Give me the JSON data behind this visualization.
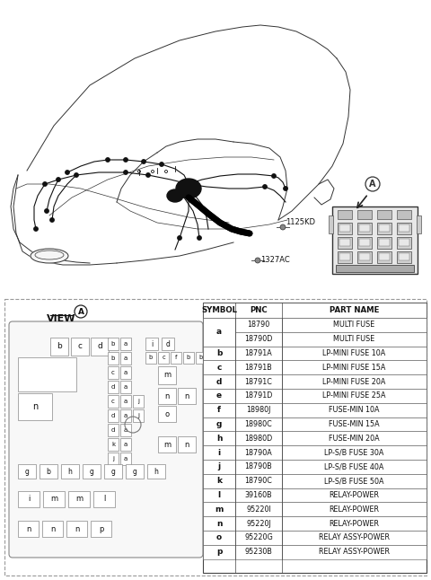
{
  "bg_color": "#ffffff",
  "table_headers": [
    "SYMBOL",
    "PNC",
    "PART NAME"
  ],
  "table_rows": [
    [
      "a",
      "18790",
      "MULTI FUSE"
    ],
    [
      "a",
      "18790D",
      "MULTI FUSE"
    ],
    [
      "b",
      "18791A",
      "LP-MINI FUSE 10A"
    ],
    [
      "c",
      "18791B",
      "LP-MINI FUSE 15A"
    ],
    [
      "d",
      "18791C",
      "LP-MINI FUSE 20A"
    ],
    [
      "e",
      "18791D",
      "LP-MINI FUSE 25A"
    ],
    [
      "f",
      "18980J",
      "FUSE-MIN 10A"
    ],
    [
      "g",
      "18980C",
      "FUSE-MIN 15A"
    ],
    [
      "h",
      "18980D",
      "FUSE-MIN 20A"
    ],
    [
      "i",
      "18790A",
      "LP-S/B FUSE 30A"
    ],
    [
      "j",
      "18790B",
      "LP-S/B FUSE 40A"
    ],
    [
      "k",
      "18790C",
      "LP-S/B FUSE 50A"
    ],
    [
      "l",
      "39160B",
      "RELAY-POWER"
    ],
    [
      "m",
      "95220I",
      "RELAY-POWER"
    ],
    [
      "n",
      "95220J",
      "RELAY-POWER"
    ],
    [
      "o",
      "95220G",
      "RELAY ASSY-POWER"
    ],
    [
      "p",
      "95230B",
      "RELAY ASSY-POWER"
    ]
  ],
  "label_1125KD": "1125KD",
  "label_1327AC": "1327AC",
  "label_A": "A",
  "view_label": "VIEW"
}
